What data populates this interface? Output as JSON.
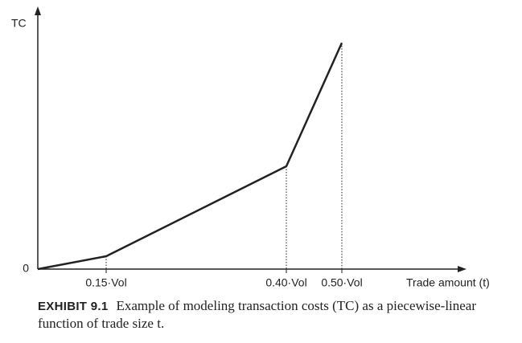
{
  "chart_data": {
    "type": "line",
    "y_label": "TC",
    "x_label": "Trade amount (t)",
    "categories": [
      null,
      "0.15·Vol",
      "0.40·Vol",
      "0.50·Vol"
    ],
    "values": [
      0,
      0.05,
      0.4,
      0.88
    ],
    "color": "#222222",
    "ylim": [
      0,
      1
    ],
    "yticks": [
      0
    ],
    "grid": false,
    "caption_label": "EXHIBIT 9.1",
    "caption": "Example of modeling transaction costs (TC) as a piecewise-linear function of trade size t."
  }
}
